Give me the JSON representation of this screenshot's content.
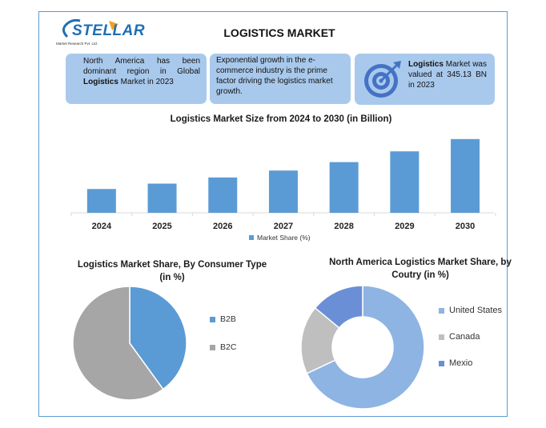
{
  "logo": {
    "name": "STELLAR",
    "tagline": "Market Research Pvt. Ltd."
  },
  "title": "LOGISTICS MARKET",
  "info": {
    "box1_pre": "North America has been dominant region in Global ",
    "box1_bold": "Logistics",
    "box1_post": " Market in 2023",
    "box2": "Exponential growth in the e-commerce industry is the prime factor driving the logistics market growth.",
    "box3_bold": "Logistics",
    "box3_post": " Market was valued at 345.13 BN in 2023"
  },
  "colors": {
    "bar": "#5b9bd5",
    "box": "#a9c9ec",
    "b2b": "#5b9bd5",
    "b2c": "#a6a6a6",
    "us": "#8db4e2",
    "canada": "#bfbfbf",
    "mexico": "#6b8fd6"
  },
  "chart_data": [
    {
      "type": "bar",
      "title": "Logistics Market Size from 2024 to 2030 (in Billion)",
      "categories": [
        "2024",
        "2025",
        "2026",
        "2027",
        "2028",
        "2029",
        "2030"
      ],
      "series": [
        {
          "name": "Market Share (%)",
          "values": [
            31,
            38,
            46,
            55,
            66,
            80,
            96
          ]
        }
      ],
      "ylim": [
        0,
        100
      ],
      "grid": false,
      "legend": "bottom"
    },
    {
      "type": "pie",
      "title": "Logistics Market Share, By Consumer Type (in %)",
      "categories": [
        "B2B",
        "B2C"
      ],
      "values": [
        40,
        60
      ],
      "legend": "right"
    },
    {
      "type": "pie",
      "subtype": "donut",
      "title": "North America Logistics Market Share, by Coutry (in %)",
      "categories": [
        "United States",
        "Canada",
        "Mexio"
      ],
      "values": [
        68,
        18,
        14
      ],
      "legend": "right"
    }
  ]
}
